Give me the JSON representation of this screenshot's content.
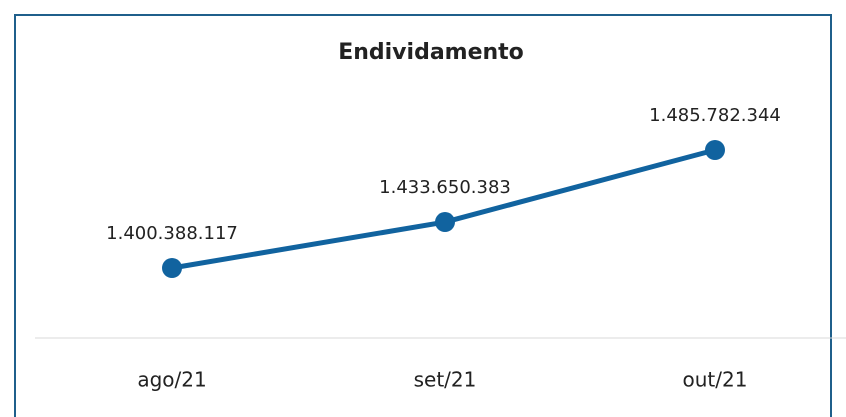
{
  "chart_data": {
    "type": "line",
    "title": "Endividamento",
    "categories": [
      "ago/21",
      "set/21",
      "out/21"
    ],
    "series": [
      {
        "name": null,
        "color": "#11639f",
        "values": [
          1400388117,
          1433650383,
          1485782344
        ],
        "value_labels": [
          "1.400.388.117",
          "1.433.650.383",
          "1.485.782.344"
        ]
      }
    ]
  }
}
